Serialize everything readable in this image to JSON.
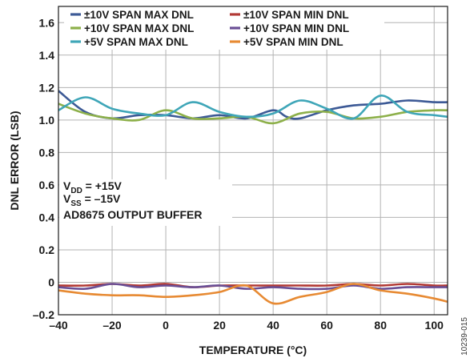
{
  "chart_data": {
    "type": "line",
    "xlabel": "TEMPERATURE (°C)",
    "ylabel": "DNL ERROR (LSB)",
    "xlim": [
      -40,
      105
    ],
    "ylim": [
      -0.2,
      1.7
    ],
    "x_ticks": [
      -40,
      -20,
      0,
      20,
      40,
      60,
      80,
      100
    ],
    "x_tick_labels": [
      "–40",
      "–20",
      "0",
      "20",
      "40",
      "60",
      "80",
      "100"
    ],
    "y_ticks": [
      -0.2,
      0,
      0.2,
      0.4,
      0.6,
      0.8,
      1.0,
      1.2,
      1.4,
      1.6
    ],
    "y_tick_labels": [
      "–0.2",
      "0",
      "0.2",
      "0.4",
      "0.6",
      "0.8",
      "1.0",
      "1.2",
      "1.4",
      "1.6"
    ],
    "grid": true,
    "legend_position": "top",
    "series": [
      {
        "name": "±10V SPAN MAX DNL",
        "color": "#3d5a96",
        "x": [
          -40,
          -30,
          -20,
          -10,
          0,
          10,
          20,
          30,
          40,
          45,
          50,
          60,
          70,
          80,
          90,
          100,
          105
        ],
        "y": [
          1.18,
          1.05,
          1.01,
          1.03,
          1.03,
          1.01,
          1.03,
          1.01,
          1.06,
          1.02,
          1.01,
          1.06,
          1.09,
          1.1,
          1.12,
          1.11,
          1.11
        ]
      },
      {
        "name": "±10V SPAN MIN DNL",
        "color": "#b23a35",
        "x": [
          -40,
          -30,
          -20,
          -10,
          0,
          10,
          20,
          30,
          40,
          50,
          60,
          70,
          80,
          90,
          100,
          105
        ],
        "y": [
          -0.02,
          -0.02,
          -0.01,
          -0.02,
          -0.01,
          -0.03,
          -0.02,
          -0.02,
          -0.02,
          -0.02,
          -0.02,
          -0.01,
          -0.02,
          -0.01,
          -0.02,
          -0.02
        ]
      },
      {
        "name": "+10V SPAN MAX DNL",
        "color": "#8db04a",
        "x": [
          -40,
          -30,
          -20,
          -10,
          0,
          10,
          20,
          30,
          40,
          50,
          60,
          70,
          80,
          90,
          100,
          105
        ],
        "y": [
          1.1,
          1.04,
          1.01,
          1.0,
          1.06,
          1.01,
          1.01,
          1.02,
          0.98,
          1.04,
          1.05,
          1.01,
          1.02,
          1.05,
          1.06,
          1.06
        ]
      },
      {
        "name": "+10V SPAN MIN DNL",
        "color": "#6a4f95",
        "x": [
          -40,
          -30,
          -20,
          -10,
          0,
          10,
          20,
          30,
          40,
          50,
          60,
          70,
          80,
          90,
          100,
          105
        ],
        "y": [
          -0.03,
          -0.04,
          -0.01,
          -0.03,
          -0.02,
          -0.03,
          -0.02,
          -0.04,
          -0.03,
          -0.04,
          -0.04,
          -0.02,
          -0.04,
          -0.03,
          -0.03,
          -0.03
        ]
      },
      {
        "name": "+5V SPAN MAX DNL",
        "color": "#3fa6b8",
        "x": [
          -40,
          -30,
          -20,
          -10,
          0,
          10,
          20,
          30,
          40,
          50,
          60,
          70,
          80,
          90,
          100,
          105
        ],
        "y": [
          1.06,
          1.14,
          1.07,
          1.04,
          1.03,
          1.11,
          1.05,
          1.02,
          1.04,
          1.12,
          1.07,
          1.01,
          1.15,
          1.05,
          1.03,
          1.02
        ]
      },
      {
        "name": "+5V SPAN MIN DNL",
        "color": "#e78a33",
        "x": [
          -40,
          -30,
          -20,
          -10,
          0,
          10,
          20,
          30,
          40,
          50,
          60,
          70,
          80,
          90,
          100,
          105
        ],
        "y": [
          -0.05,
          -0.07,
          -0.08,
          -0.08,
          -0.09,
          -0.08,
          -0.06,
          -0.02,
          -0.13,
          -0.09,
          -0.06,
          -0.01,
          -0.05,
          -0.07,
          -0.1,
          -0.12
        ]
      }
    ],
    "annotation_lines": [
      {
        "main": "V",
        "sub": "DD",
        "rest": " = +15V"
      },
      {
        "main": "V",
        "sub": "SS",
        "rest": " = –15V"
      },
      {
        "main": "AD8675 OUTPUT BUFFER",
        "sub": "",
        "rest": ""
      }
    ],
    "figure_id": "10239-015"
  }
}
